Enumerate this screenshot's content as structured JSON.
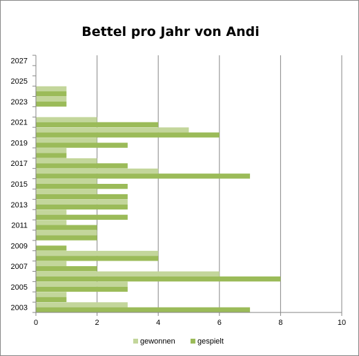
{
  "chart_data": {
    "type": "bar",
    "orientation": "horizontal",
    "title": "Bettel pro Jahr von Andi",
    "xlabel": "",
    "ylabel": "",
    "xlim": [
      0,
      10
    ],
    "x_ticks": [
      0,
      2,
      4,
      6,
      8,
      10
    ],
    "grid": "vertical",
    "legend_position": "bottom",
    "categories": [
      2003,
      2004,
      2005,
      2006,
      2007,
      2008,
      2009,
      2010,
      2011,
      2012,
      2013,
      2014,
      2015,
      2016,
      2017,
      2018,
      2019,
      2020,
      2021,
      2022,
      2023,
      2024,
      2025,
      2026,
      2027
    ],
    "category_tick_labels": [
      "2003",
      "2005",
      "2007",
      "2009",
      "2011",
      "2013",
      "2015",
      "2017",
      "2019",
      "2021",
      "2023",
      "2025",
      "2027"
    ],
    "series": [
      {
        "name": "gewonnen",
        "color": "#c3d69b",
        "values": [
          3,
          1,
          3,
          6,
          1,
          4,
          0,
          2,
          1,
          1,
          3,
          2,
          2,
          4,
          2,
          1,
          2,
          5,
          2,
          0,
          1,
          1,
          0,
          0,
          0
        ]
      },
      {
        "name": "gespielt",
        "color": "#9bbb59",
        "values": [
          7,
          1,
          3,
          8,
          2,
          4,
          1,
          2,
          2,
          3,
          3,
          3,
          3,
          7,
          3,
          1,
          3,
          6,
          4,
          0,
          1,
          1,
          0,
          0,
          0
        ]
      }
    ]
  }
}
